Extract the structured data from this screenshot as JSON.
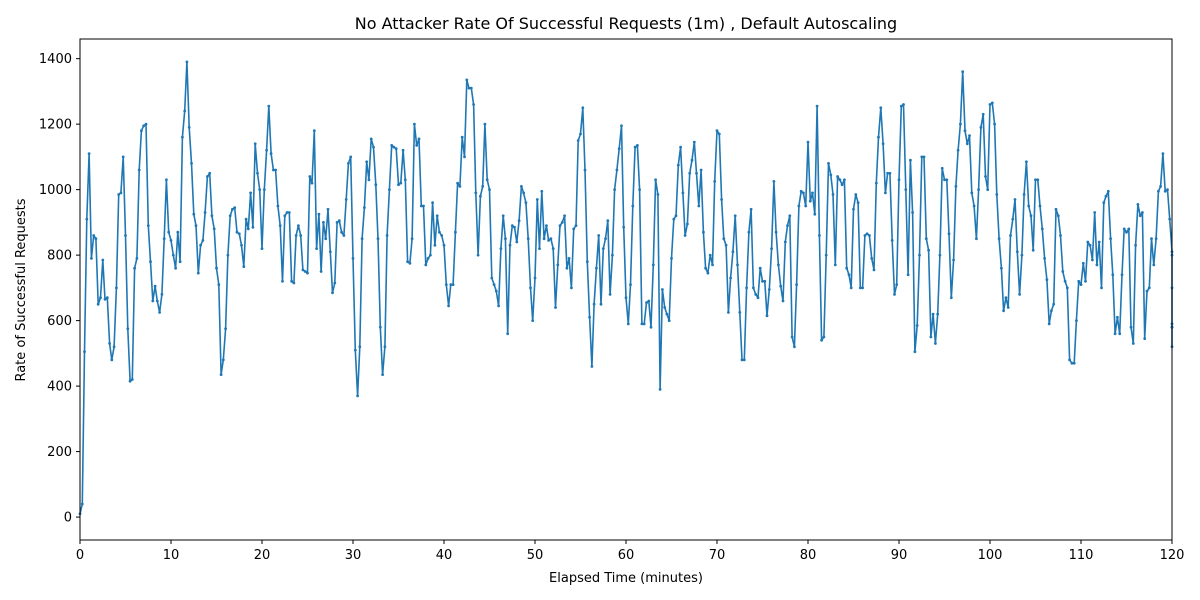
{
  "chart_data": {
    "type": "line",
    "title": "No Attacker Rate Of Successful Requests (1m) , Default Autoscaling",
    "xlabel": "Elapsed Time (minutes)",
    "ylabel": "Rate of Successful Requests",
    "xlim": [
      0,
      120
    ],
    "ylim": [
      -70,
      1460
    ],
    "x_ticks": [
      0,
      10,
      20,
      30,
      40,
      50,
      60,
      70,
      80,
      90,
      100,
      110,
      120
    ],
    "y_ticks": [
      0,
      200,
      400,
      600,
      800,
      1000,
      1200,
      1400
    ],
    "grid": false,
    "legend": "none",
    "series_color": "#1f77b4",
    "x_step": 0.25,
    "series": [
      {
        "values": [
          10,
          40,
          505,
          910,
          1110,
          790,
          860,
          850,
          650,
          670,
          785,
          665,
          670,
          530,
          480,
          520,
          700,
          985,
          990,
          1100,
          860,
          575,
          415,
          420,
          760,
          790,
          1060,
          1180,
          1195,
          1200,
          890,
          780,
          660,
          705,
          660,
          625,
          680,
          850,
          1030,
          870,
          845,
          800,
          760,
          870,
          780,
          1160,
          1240,
          1390,
          1190,
          1080,
          925,
          890,
          745,
          830,
          845,
          930,
          1040,
          1050,
          920,
          880,
          760,
          710,
          435,
          480,
          575,
          800,
          920,
          940,
          945,
          870,
          865,
          830,
          765,
          910,
          880,
          990,
          885,
          1140,
          1050,
          1000,
          820,
          1000,
          1120,
          1255,
          1110,
          1060,
          1060,
          950,
          890,
          720,
          920,
          930,
          930,
          720,
          715,
          860,
          890,
          860,
          755,
          750,
          745,
          1040,
          1020,
          1180,
          820,
          925,
          750,
          900,
          850,
          940,
          810,
          685,
          715,
          900,
          905,
          870,
          860,
          970,
          1080,
          1100,
          790,
          510,
          370,
          520,
          850,
          945,
          1085,
          1030,
          1155,
          1130,
          1015,
          850,
          580,
          435,
          520,
          860,
          1000,
          1135,
          1130,
          1125,
          1015,
          1020,
          1120,
          1030,
          780,
          775,
          850,
          1200,
          1135,
          1155,
          950,
          950,
          770,
          790,
          800,
          960,
          830,
          920,
          870,
          860,
          830,
          710,
          645,
          710,
          710,
          870,
          1020,
          1010,
          1160,
          1100,
          1335,
          1310,
          1310,
          1260,
          990,
          800,
          980,
          1010,
          1200,
          1030,
          1000,
          730,
          710,
          690,
          645,
          820,
          920,
          850,
          560,
          830,
          890,
          885,
          840,
          905,
          1010,
          990,
          960,
          850,
          700,
          600,
          730,
          970,
          820,
          995,
          850,
          890,
          845,
          850,
          820,
          640,
          770,
          890,
          900,
          920,
          760,
          790,
          700,
          880,
          890,
          1150,
          1170,
          1250,
          1060,
          780,
          610,
          460,
          650,
          760,
          860,
          650,
          820,
          850,
          905,
          680,
          800,
          1000,
          1060,
          1125,
          1195,
          885,
          670,
          590,
          710,
          950,
          1130,
          1135,
          1000,
          590,
          590,
          655,
          660,
          580,
          770,
          1030,
          985,
          390,
          695,
          640,
          620,
          600,
          790,
          910,
          920,
          1075,
          1130,
          990,
          860,
          895,
          1050,
          1090,
          1145,
          1050,
          950,
          1060,
          870,
          760,
          745,
          800,
          770,
          1025,
          1180,
          1170,
          970,
          850,
          830,
          625,
          730,
          810,
          920,
          770,
          625,
          480,
          480,
          700,
          870,
          940,
          700,
          680,
          670,
          760,
          720,
          720,
          615,
          695,
          820,
          1025,
          870,
          770,
          705,
          660,
          840,
          890,
          920,
          550,
          520,
          710,
          950,
          995,
          990,
          950,
          1145,
          965,
          990,
          925,
          1255,
          860,
          540,
          550,
          800,
          1080,
          1045,
          985,
          770,
          1040,
          1030,
          1015,
          1030,
          760,
          740,
          700,
          940,
          985,
          960,
          700,
          700,
          860,
          865,
          860,
          790,
          755,
          1020,
          1160,
          1250,
          1140,
          990,
          1050,
          1050,
          845,
          680,
          710,
          1030,
          1255,
          1260,
          1000,
          740,
          1090,
          930,
          505,
          585,
          800,
          1100,
          1100,
          850,
          815,
          550,
          620,
          530,
          620,
          800,
          1065,
          1030,
          1030,
          865,
          670,
          785,
          1010,
          1120,
          1200,
          1360,
          1180,
          1140,
          1165,
          990,
          950,
          850,
          1000,
          1190,
          1230,
          1040,
          1000,
          1260,
          1265,
          1200,
          985,
          850,
          760,
          630,
          670,
          640,
          860,
          910,
          970,
          810,
          680,
          800,
          985,
          1085,
          950,
          920,
          815,
          1030,
          1030,
          950,
          880,
          790,
          725,
          590,
          630,
          650,
          940,
          920,
          860,
          750,
          720,
          700,
          480,
          470,
          470,
          600,
          720,
          710,
          775,
          720,
          840,
          830,
          785,
          930,
          770,
          840,
          700,
          960,
          980,
          995,
          850,
          740,
          560,
          610,
          560,
          740,
          880,
          870,
          880,
          580,
          530,
          830,
          955,
          920,
          930,
          545,
          690,
          700,
          850,
          770,
          850,
          995,
          1010,
          1110,
          995,
          1000,
          910,
          810,
          800,
          700,
          590,
          580,
          580,
          520
        ]
      }
    ]
  }
}
